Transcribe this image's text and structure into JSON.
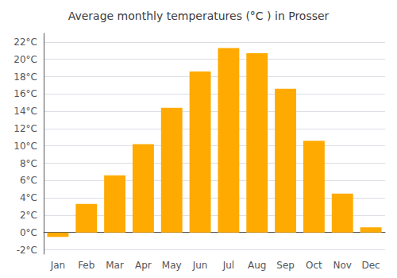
{
  "chart_data": {
    "type": "bar",
    "title": "Average monthly temperatures (°C ) in Prosser",
    "categories": [
      "Jan",
      "Feb",
      "Mar",
      "Apr",
      "May",
      "Jun",
      "Jul",
      "Aug",
      "Sep",
      "Oct",
      "Nov",
      "Dec"
    ],
    "values": [
      -0.5,
      3.3,
      6.6,
      10.2,
      14.4,
      18.6,
      21.3,
      20.7,
      16.6,
      10.6,
      4.5,
      0.6
    ],
    "color": "#FFAA00",
    "ylim": [
      -2.5,
      23
    ],
    "yticks": [
      {
        "value": -2,
        "label": "-2°C"
      },
      {
        "value": 0,
        "label": "0°C"
      },
      {
        "value": 2,
        "label": "2°C"
      },
      {
        "value": 4,
        "label": "4°C"
      },
      {
        "value": 6,
        "label": "6°C"
      },
      {
        "value": 8,
        "label": "8°C"
      },
      {
        "value": 10,
        "label": "10°C"
      },
      {
        "value": 12,
        "label": "12°C"
      },
      {
        "value": 14,
        "label": "14°C"
      },
      {
        "value": 16,
        "label": "16°C"
      },
      {
        "value": 18,
        "label": "18°C"
      },
      {
        "value": 20,
        "label": "20°C"
      },
      {
        "value": 22,
        "label": "22°C"
      }
    ],
    "grid": true
  }
}
